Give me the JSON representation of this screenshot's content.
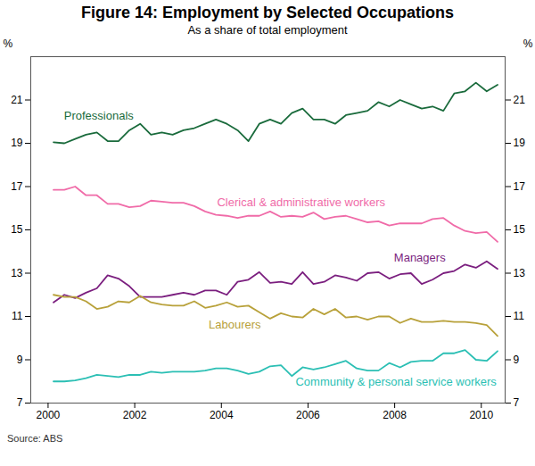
{
  "chart_data": {
    "type": "line",
    "title": "Figure 14: Employment by Selected Occupations",
    "subtitle": "As a share of total employment",
    "caption": "Source: ABS",
    "ylabel": "%",
    "x": [
      2000.125,
      2000.375,
      2000.625,
      2000.875,
      2001.125,
      2001.375,
      2001.625,
      2001.875,
      2002.125,
      2002.375,
      2002.625,
      2002.875,
      2003.125,
      2003.375,
      2003.625,
      2003.875,
      2004.125,
      2004.375,
      2004.625,
      2004.875,
      2005.125,
      2005.375,
      2005.625,
      2005.875,
      2006.125,
      2006.375,
      2006.625,
      2006.875,
      2007.125,
      2007.375,
      2007.625,
      2007.875,
      2008.125,
      2008.375,
      2008.625,
      2008.875,
      2009.125,
      2009.375,
      2009.625,
      2009.875,
      2010.125,
      2010.375
    ],
    "series": [
      {
        "name": "Professionals",
        "color": "#1a6b3c",
        "values": [
          19.05,
          19.0,
          19.2,
          19.4,
          19.5,
          19.1,
          19.1,
          19.6,
          19.9,
          19.4,
          19.5,
          19.4,
          19.6,
          19.7,
          19.9,
          20.1,
          19.9,
          19.6,
          19.1,
          19.9,
          20.1,
          19.9,
          20.4,
          20.6,
          20.1,
          20.1,
          19.9,
          20.3,
          20.4,
          20.5,
          20.9,
          20.7,
          21.0,
          20.8,
          20.6,
          20.7,
          20.5,
          21.3,
          21.4,
          21.8,
          21.4,
          21.7
        ]
      },
      {
        "name": "Clerical & administrative workers",
        "color": "#f06ba8",
        "values": [
          16.85,
          16.85,
          17.0,
          16.6,
          16.6,
          16.2,
          16.2,
          16.05,
          16.1,
          16.35,
          16.3,
          16.25,
          16.25,
          16.1,
          15.85,
          15.7,
          15.65,
          15.55,
          15.65,
          15.65,
          15.85,
          15.6,
          15.65,
          15.6,
          15.8,
          15.5,
          15.6,
          15.65,
          15.5,
          15.35,
          15.4,
          15.2,
          15.3,
          15.3,
          15.3,
          15.5,
          15.55,
          15.2,
          14.95,
          14.85,
          14.9,
          14.45
        ]
      },
      {
        "name": "Managers",
        "color": "#7b1f7f",
        "values": [
          11.65,
          12.0,
          11.85,
          12.1,
          12.3,
          12.9,
          12.75,
          12.4,
          11.9,
          11.9,
          11.9,
          12.0,
          12.1,
          12.0,
          12.2,
          12.2,
          12.0,
          12.6,
          12.7,
          13.05,
          12.55,
          12.6,
          12.5,
          13.05,
          12.5,
          12.6,
          12.9,
          12.8,
          12.65,
          13.0,
          13.05,
          12.75,
          12.95,
          13.0,
          12.5,
          12.7,
          13.0,
          13.1,
          13.4,
          13.25,
          13.55,
          13.2
        ]
      },
      {
        "name": "Labourers",
        "color": "#b8a13a",
        "values": [
          12.0,
          11.9,
          11.9,
          11.7,
          11.35,
          11.45,
          11.7,
          11.65,
          11.95,
          11.65,
          11.55,
          11.5,
          11.5,
          11.7,
          11.4,
          11.5,
          11.65,
          11.45,
          11.5,
          11.2,
          10.9,
          11.15,
          11.0,
          10.95,
          11.35,
          11.1,
          11.35,
          10.95,
          11.0,
          10.85,
          11.0,
          11.0,
          10.7,
          10.9,
          10.75,
          10.75,
          10.8,
          10.75,
          10.75,
          10.7,
          10.6,
          10.1
        ]
      },
      {
        "name": "Community & personal service workers",
        "color": "#2bbfb4",
        "values": [
          8.0,
          8.0,
          8.05,
          8.15,
          8.3,
          8.25,
          8.2,
          8.3,
          8.3,
          8.45,
          8.4,
          8.45,
          8.45,
          8.45,
          8.5,
          8.6,
          8.6,
          8.5,
          8.35,
          8.45,
          8.7,
          8.75,
          8.25,
          8.65,
          8.55,
          8.65,
          8.8,
          8.95,
          8.6,
          8.5,
          8.5,
          8.85,
          8.65,
          8.9,
          8.95,
          8.95,
          9.3,
          9.3,
          9.45,
          9.0,
          8.95,
          9.4
        ]
      }
    ],
    "xlim": [
      1999.6,
      2010.55
    ],
    "xticks": [
      2000,
      2002,
      2004,
      2006,
      2008,
      2010
    ],
    "ylim": [
      7,
      23
    ],
    "yticks": [
      7,
      9,
      11,
      13,
      15,
      17,
      19,
      21
    ],
    "grid": false
  }
}
